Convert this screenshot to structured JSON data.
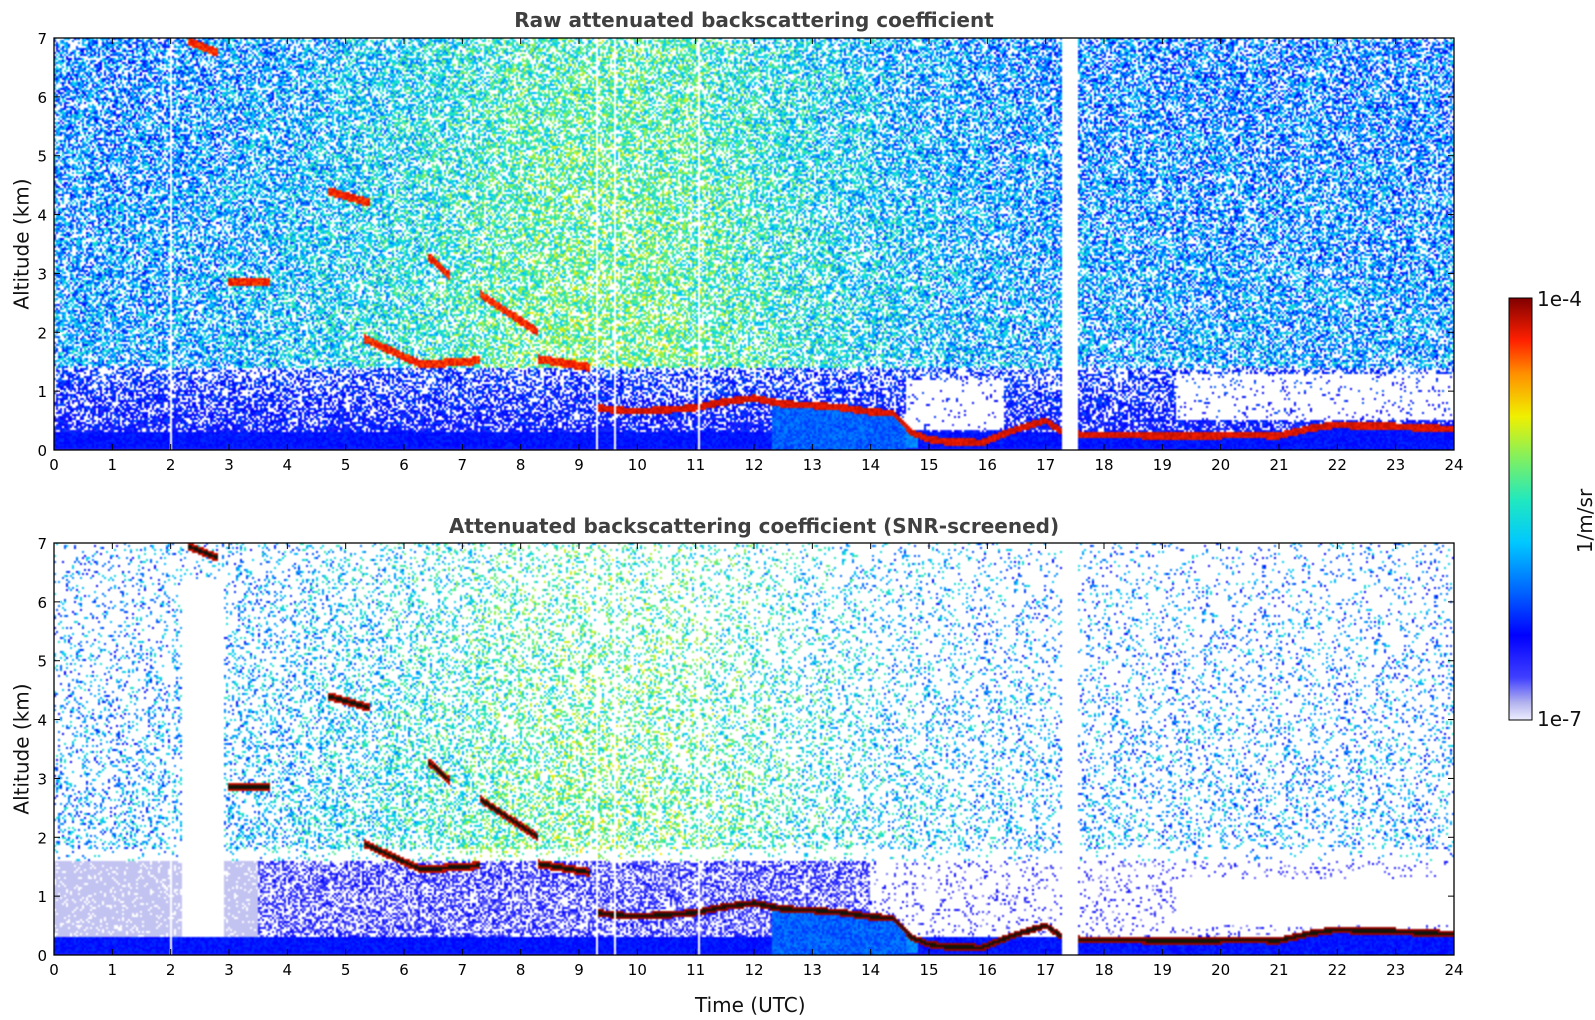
{
  "chart_data": [
    {
      "type": "heatmap",
      "title": "Raw attenuated backscattering coefficient",
      "xlabel": "",
      "ylabel": "Altitude (km)",
      "xlim": [
        0,
        24
      ],
      "ylim": [
        0,
        7
      ],
      "xticks": [
        "0",
        "1",
        "2",
        "3",
        "4",
        "5",
        "6",
        "7",
        "8",
        "9",
        "10",
        "11",
        "12",
        "13",
        "14",
        "15",
        "16",
        "17",
        "18",
        "19",
        "20",
        "21",
        "22",
        "23",
        "24"
      ],
      "yticks": [
        "0",
        "1",
        "2",
        "3",
        "4",
        "5",
        "6",
        "7"
      ],
      "data_gap_hours": [
        17.28,
        17.55
      ],
      "noise_clear_region": {
        "x": [
          14.6,
          16.3
        ],
        "y_max": 1.2
      },
      "cloud_layer_base_km": {
        "x": [
          9.3,
          9.6,
          10.0,
          10.5,
          11.0,
          11.5,
          12.0,
          12.5,
          13.0,
          13.5,
          14.0,
          14.4,
          14.7,
          15.0,
          15.3,
          15.6,
          15.9,
          16.2,
          16.5,
          17.0,
          17.3,
          17.6,
          18.0,
          18.5,
          19.0,
          19.3,
          19.8,
          20.4,
          21.0,
          21.5,
          22.0,
          22.5,
          23.0,
          23.5,
          24.0
        ],
        "y": [
          0.72,
          0.68,
          0.66,
          0.68,
          0.72,
          0.82,
          0.88,
          0.78,
          0.76,
          0.72,
          0.65,
          0.62,
          0.3,
          0.18,
          0.14,
          0.14,
          0.12,
          0.24,
          0.35,
          0.5,
          0.3,
          0.26,
          0.26,
          0.25,
          0.24,
          0.24,
          0.24,
          0.26,
          0.24,
          0.36,
          0.43,
          0.4,
          0.4,
          0.37,
          0.36
        ]
      },
      "elevated_layers_km": [
        {
          "x": [
            2.3,
            2.8
          ],
          "y": [
            6.95,
            6.75
          ]
        },
        {
          "x": [
            4.7,
            5.4
          ],
          "y": [
            4.4,
            4.2
          ]
        },
        {
          "x": [
            6.4,
            6.8
          ],
          "y": [
            3.3,
            2.95
          ]
        },
        {
          "x": [
            7.3,
            8.3
          ],
          "y": [
            2.65,
            2.0
          ]
        },
        {
          "x": [
            5.3,
            6.3
          ],
          "y": [
            1.9,
            1.45
          ]
        },
        {
          "x": [
            6.3,
            7.3
          ],
          "y": [
            1.45,
            1.52
          ]
        },
        {
          "x": [
            8.3,
            9.2
          ],
          "y": [
            1.55,
            1.4
          ]
        },
        {
          "x": [
            3.0,
            3.7
          ],
          "y": [
            2.85,
            2.85
          ]
        }
      ]
    },
    {
      "type": "heatmap",
      "title": "Attenuated backscattering coefficient (SNR-screened)",
      "xlabel": "Time (UTC)",
      "ylabel": "Altitude (km)",
      "xlim": [
        0,
        24
      ],
      "ylim": [
        0,
        7
      ],
      "xticks": [
        "0",
        "1",
        "2",
        "3",
        "4",
        "5",
        "6",
        "7",
        "8",
        "9",
        "10",
        "11",
        "12",
        "13",
        "14",
        "15",
        "16",
        "17",
        "18",
        "19",
        "20",
        "21",
        "22",
        "23",
        "24"
      ],
      "yticks": [
        "0",
        "1",
        "2",
        "3",
        "4",
        "5",
        "6",
        "7"
      ],
      "data_gap_hours": [
        17.28,
        17.55
      ],
      "screened_void": {
        "x": [
          2.2,
          2.9
        ],
        "y": [
          0.3,
          6.4
        ]
      }
    }
  ],
  "colorbar": {
    "label": "1/m/sr",
    "max_label": "1e-4",
    "min_label": "1e-7",
    "colormap": [
      "#e8e8f6",
      "#0000ff",
      "#00c8ff",
      "#f0f000",
      "#ff2000",
      "#800000"
    ]
  }
}
